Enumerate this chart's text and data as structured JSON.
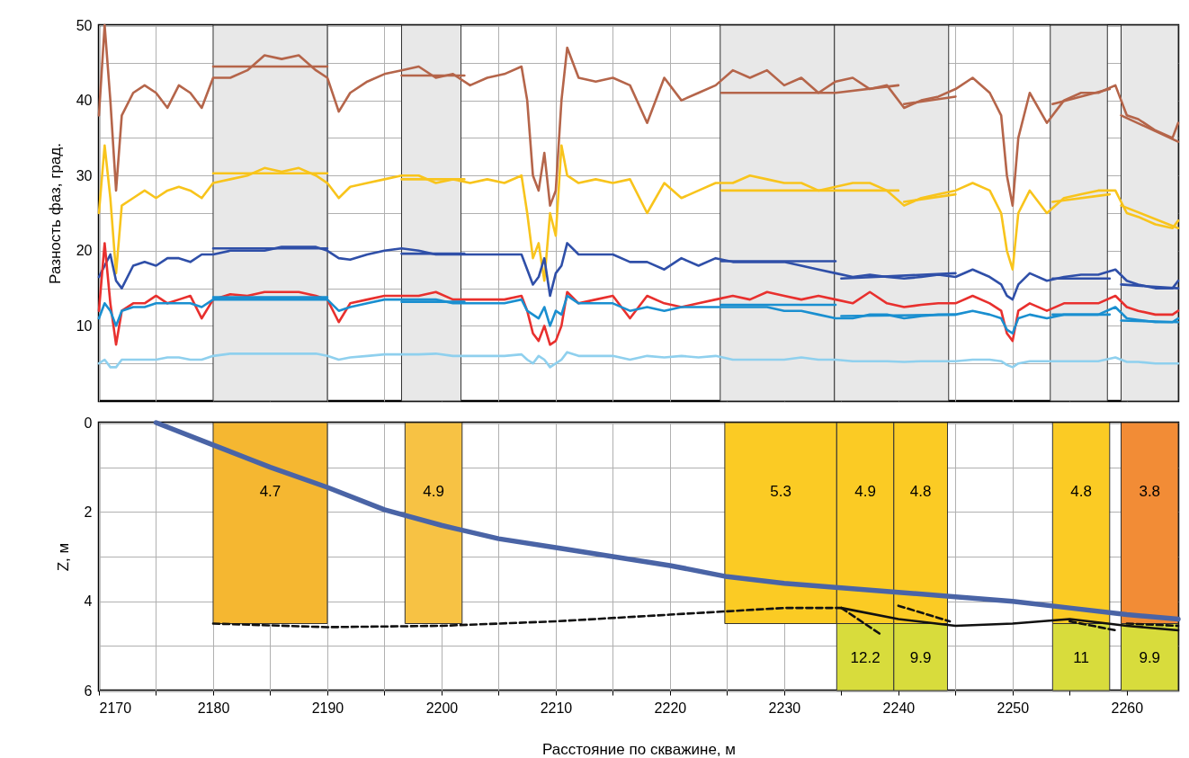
{
  "chart_data": [
    {
      "type": "line",
      "ylabel": "Разность фаз, град.",
      "tick_labels": "y",
      "grid": true,
      "xlim": [
        2170,
        2264.5
      ],
      "ylim": [
        0,
        50
      ],
      "xticks": [
        2170,
        {
          "value": 2175,
          "label": null
        },
        2180,
        {
          "value": 2185,
          "label": null
        },
        2190,
        {
          "value": 2195,
          "label": null
        },
        2200,
        {
          "value": 2205,
          "label": null
        },
        2210,
        {
          "value": 2215,
          "label": null
        },
        2220,
        {
          "value": 2225,
          "label": null
        },
        2230,
        {
          "value": 2235,
          "label": null
        },
        2240,
        {
          "value": 2245,
          "label": null
        },
        2250,
        {
          "value": 2255,
          "label": null
        },
        2260
      ],
      "yticks": [
        {
          "value": 5,
          "label": null
        },
        10,
        {
          "value": 15,
          "label": null
        },
        20,
        {
          "value": 25,
          "label": null
        },
        30,
        {
          "value": 35,
          "label": null
        },
        40,
        {
          "value": 45,
          "label": null
        },
        50
      ],
      "bands": [
        {
          "axis": "x",
          "from": 2180,
          "to": 2190,
          "color": "#e8e8e8"
        },
        {
          "axis": "x",
          "from": 2196.5,
          "to": 2201.7,
          "color": "#e8e8e8"
        },
        {
          "axis": "x",
          "from": 2224.4,
          "to": 2234.4,
          "color": "#e8e8e8"
        },
        {
          "axis": "x",
          "from": 2234.4,
          "to": 2244.4,
          "color": "#e8e8e8"
        },
        {
          "axis": "x",
          "from": 2253.3,
          "to": 2258.3,
          "color": "#e8e8e8"
        },
        {
          "axis": "x",
          "from": 2259.5,
          "to": 2264.5,
          "color": "#e8e8e8"
        }
      ],
      "x": [
        2170,
        2170.5,
        2171,
        2171.5,
        2172,
        2173,
        2174,
        2175,
        2176,
        2177,
        2178,
        2179,
        2180,
        2181.5,
        2183,
        2184.5,
        2186,
        2187.5,
        2189,
        2190,
        2191,
        2192,
        2193.5,
        2195,
        2196.5,
        2198,
        2199.5,
        2201,
        2202.5,
        2204,
        2205.5,
        2207,
        2207.5,
        2208,
        2208.5,
        2209,
        2209.5,
        2210,
        2210.5,
        2211,
        2212,
        2213.5,
        2215,
        2216.5,
        2218,
        2219.5,
        2221,
        2222.5,
        2224,
        2225.5,
        2227,
        2228.5,
        2230,
        2231.5,
        2233,
        2234.5,
        2236,
        2237.5,
        2239,
        2240.5,
        2242,
        2243.5,
        2245,
        2246.5,
        2248,
        2249,
        2249.5,
        2250,
        2250.5,
        2251.5,
        2253,
        2254.5,
        2256,
        2257.5,
        2259,
        2260,
        2261,
        2262.5,
        2264,
        2264.5
      ],
      "series": [
        {
          "color": "#b5654a",
          "values": [
            38,
            50,
            40,
            28,
            38,
            41,
            42,
            41,
            39,
            42,
            41,
            39,
            43,
            43,
            44,
            46,
            45.5,
            46,
            44,
            43,
            38.5,
            41,
            42.5,
            43.5,
            44,
            44.5,
            43,
            43.5,
            42,
            43,
            43.5,
            44.5,
            40,
            30,
            28,
            33,
            26,
            28,
            40,
            47,
            43,
            42.5,
            43,
            42,
            37,
            43,
            40,
            41,
            42,
            44,
            43,
            44,
            42,
            43,
            41,
            42.5,
            43,
            41.5,
            42,
            39,
            40,
            40.5,
            41.5,
            43,
            41,
            38,
            30,
            26,
            35,
            41,
            37,
            40,
            41,
            41,
            42,
            38,
            37.5,
            36,
            35,
            37
          ]
        },
        {
          "color": "#f8c41c",
          "values": [
            25,
            34,
            27,
            17,
            26,
            27,
            28,
            27,
            28,
            28.5,
            28,
            27,
            29,
            29.5,
            30,
            31,
            30.5,
            31,
            30,
            29,
            27,
            28.5,
            29,
            29.5,
            30,
            30,
            29,
            29.5,
            29,
            29.5,
            29,
            30,
            25,
            19,
            21,
            16,
            25,
            22,
            34,
            30,
            29,
            29.5,
            29,
            29.5,
            25,
            29,
            27,
            28,
            29,
            29,
            30,
            29.5,
            29,
            29,
            28,
            28.5,
            29,
            29,
            28,
            26,
            27,
            27.5,
            28,
            29,
            28,
            25,
            20,
            17.5,
            25,
            28,
            25,
            27,
            27.5,
            28,
            28,
            25,
            24.5,
            23.5,
            23,
            24
          ]
        },
        {
          "color": "#2f4fa8",
          "values": [
            16.5,
            18,
            19.5,
            16,
            15,
            18,
            18.5,
            18,
            19,
            19,
            18.5,
            19.5,
            19.5,
            20,
            20,
            20,
            20.5,
            20.5,
            20.5,
            20,
            19,
            18.8,
            19.5,
            20,
            20.3,
            20,
            19.5,
            19.5,
            19.5,
            19.5,
            19.5,
            19.5,
            17.5,
            15.5,
            16.5,
            19,
            14,
            17,
            18,
            21,
            19.5,
            19.5,
            19.5,
            18.5,
            18.5,
            17.5,
            19,
            18,
            19,
            18.5,
            18.5,
            18.5,
            18.5,
            18,
            17.5,
            17,
            16.5,
            16.8,
            16.5,
            16.3,
            16.5,
            16.8,
            16.5,
            17.5,
            16.5,
            15.5,
            14,
            13.5,
            15.5,
            17,
            16,
            16.5,
            16.8,
            16.8,
            17.5,
            16,
            15.5,
            15,
            15,
            16
          ]
        },
        {
          "color": "#e8302e",
          "values": [
            12,
            21,
            13,
            7.5,
            12,
            13,
            13,
            14,
            13,
            13.5,
            14,
            11,
            13.5,
            14.2,
            14,
            14.5,
            14.5,
            14.5,
            14,
            13.5,
            10.5,
            13,
            13.5,
            14,
            14,
            14,
            14.5,
            13.5,
            13.5,
            13.5,
            13.5,
            14,
            12,
            9,
            8,
            10,
            7.5,
            8,
            10,
            14.5,
            13,
            13.5,
            14,
            11,
            14,
            13,
            12.5,
            13,
            13.5,
            14,
            13.5,
            14.5,
            14,
            13.5,
            14,
            13.5,
            13,
            14.5,
            13,
            12.5,
            12.8,
            13,
            13,
            14,
            13,
            12,
            9,
            8,
            12,
            13,
            12,
            13,
            13,
            13,
            14,
            12.5,
            12,
            11.5,
            11.5,
            12
          ]
        },
        {
          "color": "#1a8fd0",
          "values": [
            11,
            13,
            12,
            10,
            12,
            12.5,
            12.5,
            13,
            13,
            13,
            13,
            12.5,
            13.5,
            13.5,
            13.5,
            13.5,
            13.5,
            13.5,
            13.5,
            13.5,
            12,
            12.5,
            13,
            13.5,
            13.5,
            13.5,
            13.5,
            13,
            13,
            13,
            13,
            13.5,
            12,
            11.5,
            11,
            12.5,
            10,
            12,
            11.5,
            14,
            13,
            13,
            13,
            12,
            12.5,
            12,
            12.5,
            12.5,
            12.5,
            12.5,
            12.5,
            12.5,
            12,
            12,
            11.5,
            11,
            11,
            11.5,
            11.5,
            11,
            11.3,
            11.5,
            11.5,
            12,
            11.5,
            11,
            9.5,
            9,
            11,
            11.5,
            11,
            11.5,
            11.5,
            11.5,
            12.5,
            11,
            10.8,
            10.5,
            10.5,
            11
          ]
        },
        {
          "color": "#8fd0ee",
          "values": [
            5,
            5.5,
            4.5,
            4.5,
            5.5,
            5.5,
            5.5,
            5.5,
            5.8,
            5.8,
            5.5,
            5.5,
            6,
            6.3,
            6.3,
            6.3,
            6.3,
            6.3,
            6.3,
            6,
            5.5,
            5.8,
            6,
            6.2,
            6.2,
            6.2,
            6.3,
            6,
            6,
            6,
            6,
            6.2,
            5.5,
            5,
            6,
            5.5,
            4.5,
            5,
            5.5,
            6.5,
            6,
            6,
            6,
            5.5,
            6,
            5.8,
            6,
            5.8,
            6,
            5.5,
            5.5,
            5.5,
            5.5,
            5.8,
            5.5,
            5.5,
            5.3,
            5.3,
            5.3,
            5.2,
            5.3,
            5.3,
            5.3,
            5.5,
            5.5,
            5.3,
            4.8,
            4.5,
            5,
            5.3,
            5.3,
            5.3,
            5.3,
            5.3,
            5.8,
            5.2,
            5.2,
            5,
            5,
            5
          ]
        },
        {
          "color": "#b5654a",
          "x": [
            2180,
            2190,
            2193,
            2196.5,
            2202,
            2213,
            2224.5,
            2234.5,
            2240,
            2240.2,
            2240.5,
            2245,
            2250,
            2253.5,
            2258.5,
            2259,
            2259.5,
            2264.5
          ],
          "values": [
            44.5,
            44.5,
            null,
            43.3,
            43.3,
            null,
            41,
            41,
            42,
            null,
            39.5,
            40.5,
            null,
            39.5,
            41.5,
            null,
            38,
            34.5
          ]
        },
        {
          "color": "#f8c41c",
          "x": [
            2180,
            2190,
            2193,
            2196.5,
            2202,
            2213,
            2224.5,
            2234.5,
            2240,
            2240.2,
            2240.5,
            2245,
            2250,
            2253.5,
            2258.5,
            2259,
            2259.5,
            2264.5
          ],
          "values": [
            30.3,
            30.3,
            null,
            29.5,
            29.5,
            null,
            28,
            28,
            28,
            null,
            26.5,
            27.5,
            null,
            26.5,
            27.5,
            null,
            26,
            23
          ]
        },
        {
          "color": "#2f4fa8",
          "x": [
            2180,
            2190,
            2193,
            2196.5,
            2202,
            2213,
            2224.5,
            2234.5,
            2234.7,
            2235,
            2245,
            2250,
            2253.5,
            2258.5,
            2259,
            2259.5,
            2264.5
          ],
          "values": [
            20.3,
            20.3,
            null,
            19.6,
            19.6,
            null,
            18.6,
            18.6,
            null,
            16.3,
            17,
            null,
            16.3,
            16.3,
            null,
            15.5,
            15
          ]
        },
        {
          "color": "#1a8fd0",
          "x": [
            2180,
            2190,
            2193,
            2196.5,
            2202,
            2213,
            2224.5,
            2234.5,
            2234.7,
            2235,
            2245,
            2250,
            2253.5,
            2258.5,
            2259,
            2259.5,
            2264.5
          ],
          "values": [
            13.8,
            13.8,
            null,
            13.2,
            13.2,
            null,
            12.8,
            12.8,
            null,
            11.3,
            11.5,
            null,
            11.5,
            11.5,
            null,
            10.7,
            10.5
          ]
        }
      ]
    },
    {
      "type": "line",
      "xlabel": "Расстояние по скважине, м",
      "ylabel": "Z, м",
      "grid": true,
      "xlim": [
        2170,
        2264.5
      ],
      "ylim": [
        6,
        0
      ],
      "xticks": [
        2170,
        {
          "value": 2175,
          "label": null
        },
        2180,
        {
          "value": 2185,
          "label": null
        },
        2190,
        {
          "value": 2195,
          "label": null
        },
        2200,
        {
          "value": 2205,
          "label": null
        },
        2210,
        {
          "value": 2215,
          "label": null
        },
        2220,
        {
          "value": 2225,
          "label": null
        },
        2230,
        {
          "value": 2235,
          "label": null
        },
        2240,
        {
          "value": 2245,
          "label": null
        },
        2250,
        {
          "value": 2255,
          "label": null
        },
        2260
      ],
      "yticks": [
        0,
        {
          "value": 1,
          "label": null
        },
        2,
        {
          "value": 3,
          "label": null
        },
        4,
        {
          "value": 5,
          "label": null
        },
        6
      ],
      "bands": [
        {
          "axis": "x",
          "from": 2180,
          "to": 2190,
          "label": "4.7",
          "color": "#f5b731"
        },
        {
          "axis": "x",
          "from": 2196.8,
          "to": 2201.8,
          "label": "4.9",
          "color": "#f7c244"
        },
        {
          "axis": "x",
          "from": 2224.8,
          "to": 2234.6,
          "label": "5.3",
          "color": "#fbcb24"
        },
        {
          "axis": "x",
          "from": 2234.6,
          "to": 2239.6,
          "label": "4.9",
          "color": "#fbcb24"
        },
        {
          "axis": "x",
          "from": 2239.6,
          "to": 2244.3,
          "label": "4.8",
          "color": "#fbcb24"
        },
        {
          "axis": "x",
          "from": 2253.5,
          "to": 2258.5,
          "label": "4.8",
          "color": "#fbcb24"
        },
        {
          "axis": "x",
          "from": 2259.5,
          "to": 2264.5,
          "label": "3.8",
          "color": "#f28c36"
        },
        {
          "axis": "x",
          "from": 2234.6,
          "to": 2239.6,
          "label": "12.2",
          "color": "#d8dc3c"
        },
        {
          "axis": "x",
          "from": 2239.6,
          "to": 2244.3,
          "label": "9.9",
          "color": "#d8dc3c"
        },
        {
          "axis": "x",
          "from": 2253.5,
          "to": 2258.5,
          "label": "11",
          "color": "#d8dc3c"
        },
        {
          "axis": "x",
          "from": 2259.5,
          "to": 2264.5,
          "label": "9.9",
          "color": "#d8dc3c"
        }
      ],
      "series": [
        {
          "color": "#4a64a6",
          "x": [
            2175,
            2180,
            2185,
            2190,
            2195,
            2200,
            2205,
            2210,
            2215,
            2220,
            2225,
            2230,
            2235,
            2240,
            2245,
            2250,
            2255,
            2260,
            2264.5
          ],
          "values": [
            0,
            0.5,
            1,
            1.45,
            1.95,
            2.3,
            2.6,
            2.8,
            3,
            3.2,
            3.45,
            3.6,
            3.7,
            3.8,
            3.9,
            4,
            4.15,
            4.3,
            4.4
          ]
        },
        {
          "color": "#111111",
          "line_style": "dashed",
          "x": [
            2180,
            2190,
            2200,
            2210,
            2220,
            2230,
            2235
          ],
          "values": [
            4.5,
            4.58,
            4.55,
            4.45,
            4.3,
            4.15,
            4.15
          ]
        },
        {
          "color": "#111111",
          "x": [
            2235,
            2240,
            2245,
            2250,
            2255,
            2260,
            2264.5
          ],
          "values": [
            4.15,
            4.4,
            4.55,
            4.5,
            4.4,
            4.55,
            4.65
          ]
        },
        {
          "color": "#111111",
          "line_style": "dashed",
          "x": [
            2235,
            2238.5,
            2239,
            2240,
            2244.5,
            2250,
            2255,
            2259,
            2259.5,
            2260,
            2264.5
          ],
          "values": [
            4.15,
            4.75,
            null,
            4.1,
            4.45,
            null,
            4.45,
            4.65,
            null,
            4.5,
            4.55
          ]
        }
      ]
    }
  ]
}
